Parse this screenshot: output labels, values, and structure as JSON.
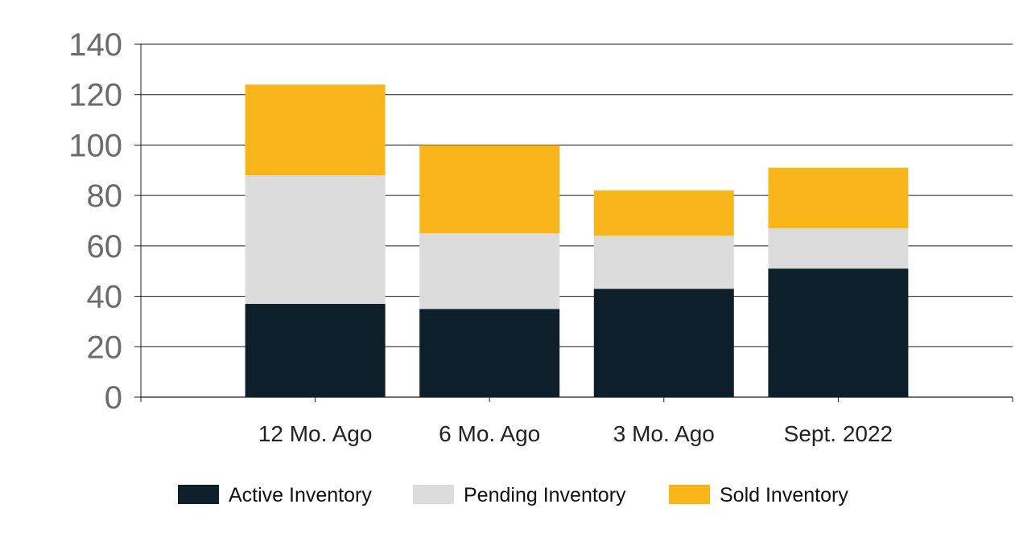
{
  "chart_data": {
    "type": "bar",
    "stacked": true,
    "categories": [
      "12 Mo. Ago",
      "6 Mo. Ago",
      "3 Mo. Ago",
      "Sept. 2022"
    ],
    "series": [
      {
        "name": "Active Inventory",
        "values": [
          37,
          35,
          43,
          51
        ],
        "color": "#0d1f2b"
      },
      {
        "name": "Pending Inventory",
        "values": [
          51,
          30,
          21,
          16
        ],
        "color": "#dcdcdc"
      },
      {
        "name": "Sold Inventory",
        "values": [
          36,
          35,
          18,
          24
        ],
        "color": "#f9b61a"
      }
    ],
    "ylim": [
      0,
      140
    ],
    "yticks": [
      0,
      20,
      40,
      60,
      80,
      100,
      120,
      140
    ],
    "grid": true,
    "legend": "bottom"
  }
}
